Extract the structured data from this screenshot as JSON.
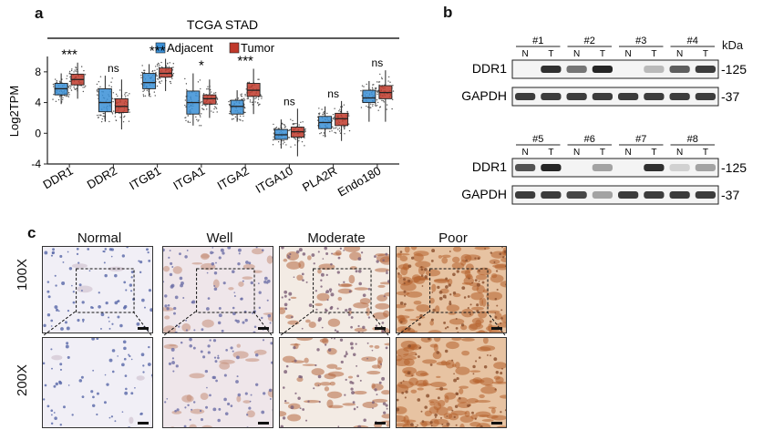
{
  "panel_a": {
    "letter": "a",
    "title": "TCGA STAD",
    "ylabel": "Log2TPM",
    "legend": [
      {
        "label": "Adjacent",
        "color": "#3a8fd6"
      },
      {
        "label": "Tumor",
        "color": "#c0392b"
      }
    ],
    "chart_data": {
      "type": "box",
      "title": "TCGA STAD",
      "ylabel": "Log2TPM",
      "ylim": [
        -4,
        10
      ],
      "yticks": [
        -4,
        0,
        4,
        8
      ],
      "categories": [
        "DDR1",
        "DDR2",
        "ITGB1",
        "ITGA1",
        "ITGA2",
        "ITGA10",
        "PLA2R",
        "Endo180"
      ],
      "significance": [
        "***",
        "ns",
        "***",
        "*",
        "***",
        "ns",
        "ns",
        "ns"
      ],
      "series": [
        {
          "name": "Adjacent",
          "color": "#3a8fd6",
          "boxes": [
            {
              "min": 3.8,
              "q1": 5.0,
              "median": 5.8,
              "q3": 6.5,
              "max": 7.8
            },
            {
              "min": 1.5,
              "q1": 2.8,
              "median": 4.0,
              "q3": 5.8,
              "max": 7.5
            },
            {
              "min": 4.8,
              "q1": 5.8,
              "median": 6.6,
              "q3": 7.8,
              "max": 9.0
            },
            {
              "min": 1.0,
              "q1": 2.5,
              "median": 4.0,
              "q3": 5.5,
              "max": 7.8
            },
            {
              "min": 1.5,
              "q1": 2.5,
              "median": 3.5,
              "q3": 4.3,
              "max": 5.6
            },
            {
              "min": -2.0,
              "q1": -0.8,
              "median": -0.2,
              "q3": 0.5,
              "max": 1.8
            },
            {
              "min": -0.5,
              "q1": 0.6,
              "median": 1.4,
              "q3": 2.2,
              "max": 3.5
            },
            {
              "min": 1.5,
              "q1": 4.0,
              "median": 4.6,
              "q3": 5.6,
              "max": 6.8
            }
          ]
        },
        {
          "name": "Tumor",
          "color": "#c0392b",
          "boxes": [
            {
              "min": 4.5,
              "q1": 6.3,
              "median": 7.0,
              "q3": 7.7,
              "max": 9.2
            },
            {
              "min": 0.5,
              "q1": 2.7,
              "median": 3.5,
              "q3": 4.5,
              "max": 7.0
            },
            {
              "min": 5.5,
              "q1": 7.3,
              "median": 7.8,
              "q3": 8.5,
              "max": 9.7
            },
            {
              "min": 2.0,
              "q1": 3.8,
              "median": 4.5,
              "q3": 5.0,
              "max": 7.0
            },
            {
              "min": 2.5,
              "q1": 4.8,
              "median": 5.6,
              "q3": 6.5,
              "max": 8.4
            },
            {
              "min": -3.0,
              "q1": -0.5,
              "median": 0.2,
              "q3": 0.8,
              "max": 3.2
            },
            {
              "min": -1.0,
              "q1": 1.0,
              "median": 1.9,
              "q3": 2.6,
              "max": 4.2
            },
            {
              "min": 1.5,
              "q1": 4.5,
              "median": 5.3,
              "q3": 6.2,
              "max": 8.2
            }
          ]
        }
      ]
    }
  },
  "panel_b": {
    "letter": "b",
    "kda_label": "kDa",
    "blocks": [
      {
        "samples": [
          "#1",
          "#2",
          "#3",
          "#4"
        ],
        "lanes": [
          "N",
          "T"
        ],
        "rows": [
          {
            "label": "DDR1",
            "marker": "125",
            "intensity": [
              0.05,
              0.9,
              0.6,
              0.95,
              0.05,
              0.3,
              0.7,
              0.85
            ]
          },
          {
            "label": "GAPDH",
            "marker": "37",
            "intensity": [
              0.85,
              0.85,
              0.85,
              0.85,
              0.85,
              0.85,
              0.85,
              0.85
            ]
          }
        ]
      },
      {
        "samples": [
          "#5",
          "#6",
          "#7",
          "#8"
        ],
        "lanes": [
          "N",
          "T"
        ],
        "rows": [
          {
            "label": "DDR1",
            "marker": "125",
            "intensity": [
              0.75,
              0.95,
              0.05,
              0.4,
              0.05,
              0.9,
              0.2,
              0.4
            ]
          },
          {
            "label": "GAPDH",
            "marker": "37",
            "intensity": [
              0.85,
              0.85,
              0.8,
              0.4,
              0.85,
              0.85,
              0.85,
              0.85
            ]
          }
        ]
      }
    ]
  },
  "panel_c": {
    "letter": "c",
    "columns": [
      "Normal",
      "Well",
      "Moderate",
      "Poor"
    ],
    "rows": [
      "100X",
      "200X"
    ]
  }
}
